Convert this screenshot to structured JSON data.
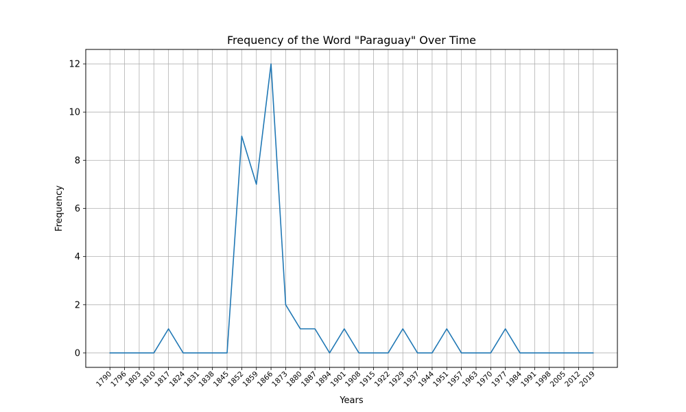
{
  "chart_data": {
    "type": "line",
    "title": "Frequency of the Word \"Paraguay\" Over Time",
    "xlabel": "Years",
    "ylabel": "Frequency",
    "categories": [
      "1790",
      "1796",
      "1803",
      "1810",
      "1817",
      "1824",
      "1831",
      "1838",
      "1845",
      "1852",
      "1859",
      "1866",
      "1873",
      "1880",
      "1887",
      "1894",
      "1901",
      "1908",
      "1915",
      "1922",
      "1929",
      "1937",
      "1944",
      "1951",
      "1957",
      "1963",
      "1970",
      "1977",
      "1984",
      "1991",
      "1998",
      "2005",
      "2012",
      "2019"
    ],
    "series": [
      {
        "values": [
          0,
          0,
          0,
          0,
          1,
          0,
          0,
          0,
          0,
          9,
          7,
          12,
          2,
          1,
          1,
          0,
          1,
          0,
          0,
          0,
          1,
          0,
          0,
          1,
          0,
          0,
          0,
          1,
          0,
          0,
          0,
          0,
          0,
          0
        ]
      }
    ],
    "yticks": [
      "0",
      "2",
      "4",
      "6",
      "8",
      "10",
      "12"
    ],
    "ylim": [
      -0.6,
      12.6
    ],
    "grid": true,
    "colors": {
      "line": "#1f77b4",
      "grid": "#b0b0b0",
      "axes": "#000000"
    }
  }
}
